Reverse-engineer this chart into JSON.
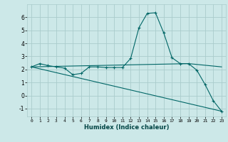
{
  "xlabel": "Humidex (Indice chaleur)",
  "background_color": "#cce8e8",
  "grid_color": "#aacccc",
  "line_color": "#006666",
  "xlim": [
    -0.5,
    23.5
  ],
  "ylim": [
    -1.6,
    7.0
  ],
  "yticks": [
    -1,
    0,
    1,
    2,
    3,
    4,
    5,
    6
  ],
  "xticks": [
    0,
    1,
    2,
    3,
    4,
    5,
    6,
    7,
    8,
    9,
    10,
    11,
    12,
    13,
    14,
    15,
    16,
    17,
    18,
    19,
    20,
    21,
    22,
    23
  ],
  "curve1_x": [
    0,
    1,
    2,
    3,
    4,
    5,
    6,
    7,
    8,
    9,
    10,
    11,
    12,
    13,
    14,
    15,
    16,
    17,
    18,
    19,
    20,
    21,
    22,
    23
  ],
  "curve1_y": [
    2.2,
    2.45,
    2.3,
    2.2,
    2.1,
    1.6,
    1.7,
    2.2,
    2.2,
    2.15,
    2.15,
    2.15,
    2.85,
    5.2,
    6.3,
    6.35,
    4.8,
    2.9,
    2.45,
    2.45,
    1.95,
    0.85,
    -0.4,
    -1.2
  ],
  "curve2_x": [
    0,
    19,
    23
  ],
  "curve2_y": [
    2.2,
    2.45,
    2.2
  ],
  "curve3_x": [
    0,
    23
  ],
  "curve3_y": [
    2.2,
    -1.2
  ]
}
